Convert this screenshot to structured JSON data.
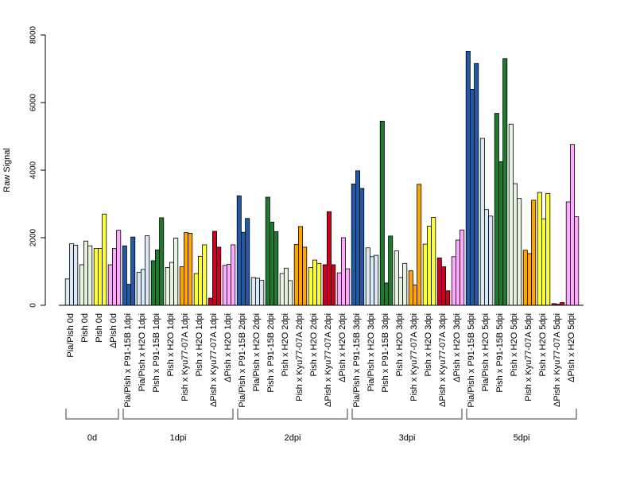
{
  "chart_data": {
    "type": "bar",
    "ylabel": "Raw Signal",
    "ylim": [
      0,
      8000
    ],
    "yticks": [
      "0",
      "2000",
      "4000",
      "6000",
      "8000"
    ],
    "yticks_values": [
      0,
      2000,
      4000,
      6000,
      8000
    ],
    "grid": false,
    "categories": [
      "Pia/Pish 0d",
      "Pish 0d",
      "Pish 0d",
      "ΔPish 0d",
      "Pia/Pish x P91-15B 1dpi",
      "Pia/Pish x H2O 1dpi",
      "Pish x P91-15B 1dpi",
      "Pish x H2O 1dpi",
      "Pish x Kyu77-07A 1dpi",
      "Pish x H2O 1dpi",
      "ΔPish x Kyu77-07A 1dpi",
      "ΔPish x H2O 1dpi",
      "Pia/Pish x P91-15B 2dpi",
      "Pia/Pish x H2O 2dpi",
      "Pish x P91-15B 2dpi",
      "Pish x H2O 2dpi",
      "Pish x Kyu77-07A 2dpi",
      "Pish x H2O 2dpi",
      "ΔPish x Kyu77-07A 2dpi",
      "ΔPish x H2O 2dpi",
      "Pia/Pish x P91-15B 3dpi",
      "Pia/Pish x H2O 3dpi",
      "Pish x P91-15B 3dpi",
      "Pish x H2O 3dpi",
      "Pish x Kyu77-07A 3dpi",
      "Pish x H2O 3dpi",
      "ΔPish x Kyu77-07A 3dpi",
      "ΔPish x H2O 3dpi",
      "Pia/Pish x P91-15B 5dpi",
      "Pia/Pish x H2O 5dpi",
      "Pish x P91-15B 5dpi",
      "Pish x H2O 5dpi",
      "Pish x Kyu77-07A 5dpi",
      "Pish x H2O 5dpi",
      "ΔPish x Kyu77-07A 5dpi",
      "ΔPish x H2O 5dpi"
    ],
    "values": [
      [
        780,
        1820,
        1780
      ],
      [
        1200,
        1900,
        1760
      ],
      [
        1680,
        1680,
        2700
      ],
      [
        1200,
        1680,
        2220
      ],
      [
        1760,
        620,
        2020
      ],
      [
        980,
        1060,
        2060
      ],
      [
        1320,
        1640,
        2590
      ],
      [
        1120,
        1270,
        1990
      ],
      [
        1140,
        2150,
        2130
      ],
      [
        940,
        1450,
        1790
      ],
      [
        210,
        2190,
        1720
      ],
      [
        1180,
        1210,
        1790
      ],
      [
        3240,
        2160,
        2570
      ],
      [
        820,
        800,
        740
      ],
      [
        3200,
        2460,
        2180
      ],
      [
        940,
        1100,
        730
      ],
      [
        1800,
        2330,
        1720
      ],
      [
        1120,
        1340,
        1240
      ],
      [
        1200,
        2770,
        1200
      ],
      [
        960,
        2000,
        1080
      ],
      [
        3590,
        3980,
        3460
      ],
      [
        1700,
        1440,
        1480
      ],
      [
        5450,
        660,
        2050
      ],
      [
        1610,
        820,
        1240
      ],
      [
        1020,
        600,
        3580
      ],
      [
        1810,
        2340,
        2600
      ],
      [
        1400,
        1140,
        430
      ],
      [
        1440,
        1930,
        2230
      ],
      [
        7520,
        6390,
        7160
      ],
      [
        4940,
        2830,
        2640
      ],
      [
        5680,
        4250,
        7300
      ],
      [
        5360,
        3600,
        3160
      ],
      [
        1630,
        1530,
        3110
      ],
      [
        3340,
        2560,
        3310
      ],
      [
        50,
        30,
        80
      ],
      [
        3060,
        4760,
        2620
      ]
    ],
    "colors": [
      "#dbe8f5",
      "#e6f3e1",
      "#ffff33",
      "#ffaaff",
      "#1f5aa6",
      "#dbe8f5",
      "#1f7a2e",
      "#e6f3e1",
      "#ffa500",
      "#ffff33",
      "#cc0022",
      "#ffaaff",
      "#1f5aa6",
      "#dbe8f5",
      "#1f7a2e",
      "#e6f3e1",
      "#ffa500",
      "#ffff33",
      "#cc0022",
      "#ffaaff",
      "#1f5aa6",
      "#dbe8f5",
      "#1f7a2e",
      "#e6f3e1",
      "#ffa500",
      "#ffff33",
      "#cc0022",
      "#ffaaff",
      "#1f5aa6",
      "#dbe8f5",
      "#1f7a2e",
      "#e6f3e1",
      "#ffa500",
      "#ffff33",
      "#cc0022",
      "#ffaaff"
    ],
    "groups": [
      {
        "label": "0d",
        "start": 0,
        "end": 3
      },
      {
        "label": "1dpi",
        "start": 4,
        "end": 11
      },
      {
        "label": "2dpi",
        "start": 12,
        "end": 19
      },
      {
        "label": "3dpi",
        "start": 20,
        "end": 27
      },
      {
        "label": "5dpi",
        "start": 28,
        "end": 35
      }
    ]
  }
}
